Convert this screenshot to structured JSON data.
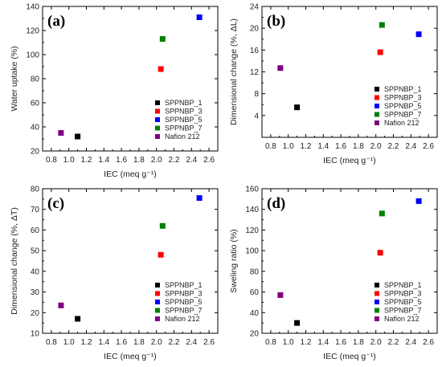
{
  "chart_data": [
    {
      "type": "scatter",
      "panel_label": "(a)",
      "xlabel": "IEC (meq g⁻¹)",
      "ylabel": "Water uptake (%)",
      "xlim": [
        0.7,
        2.7
      ],
      "ylim": [
        20,
        140
      ],
      "xticks": [
        0.8,
        1.0,
        1.2,
        1.4,
        1.6,
        1.8,
        2.0,
        2.2,
        2.4,
        2.6
      ],
      "yticks": [
        20,
        40,
        60,
        80,
        100,
        120,
        140
      ],
      "legend_position": "bottom-right",
      "series": [
        {
          "name": "SPPNBP_1",
          "color": "#000000",
          "points": [
            {
              "x": 1.1,
              "y": 32
            }
          ]
        },
        {
          "name": "SPPNBP_3",
          "color": "#ff0000",
          "points": [
            {
              "x": 2.05,
              "y": 88
            }
          ]
        },
        {
          "name": "SPPNBP_5",
          "color": "#0000ff",
          "points": [
            {
              "x": 2.49,
              "y": 131
            }
          ]
        },
        {
          "name": "SPPNBP_7",
          "color": "#008000",
          "points": [
            {
              "x": 2.07,
              "y": 113
            }
          ]
        },
        {
          "name": "Nafion 212",
          "color": "#800080",
          "points": [
            {
              "x": 0.91,
              "y": 35
            }
          ]
        }
      ]
    },
    {
      "type": "scatter",
      "panel_label": "(b)",
      "xlabel": "IEC (meq g⁻¹)",
      "ylabel": "Dimensional change (%, ΔL)",
      "xlim": [
        0.7,
        2.7
      ],
      "ylim": [
        0,
        24
      ],
      "xticks": [
        0.8,
        1.0,
        1.2,
        1.4,
        1.6,
        1.8,
        2.0,
        2.2,
        2.4,
        2.6
      ],
      "yticks": [
        4,
        8,
        12,
        16,
        20,
        24
      ],
      "legend_position": "bottom-right",
      "series": [
        {
          "name": "SPPNBP_1",
          "color": "#000000",
          "points": [
            {
              "x": 1.1,
              "y": 5.5
            }
          ]
        },
        {
          "name": "SPPNBP_3",
          "color": "#ff0000",
          "points": [
            {
              "x": 2.05,
              "y": 15.6
            }
          ]
        },
        {
          "name": "SPPNBP_5",
          "color": "#0000ff",
          "points": [
            {
              "x": 2.49,
              "y": 18.9
            }
          ]
        },
        {
          "name": "SPPNBP_7",
          "color": "#008000",
          "points": [
            {
              "x": 2.07,
              "y": 20.6
            }
          ]
        },
        {
          "name": "Nafion 212",
          "color": "#800080",
          "points": [
            {
              "x": 0.91,
              "y": 12.7
            }
          ]
        }
      ]
    },
    {
      "type": "scatter",
      "panel_label": "(c)",
      "xlabel": "IEC (meq g⁻¹)",
      "ylabel": "Dimensional change (%, ΔT)",
      "xlim": [
        0.7,
        2.7
      ],
      "ylim": [
        10,
        80
      ],
      "xticks": [
        0.8,
        1.0,
        1.2,
        1.4,
        1.6,
        1.8,
        2.0,
        2.2,
        2.4,
        2.6
      ],
      "yticks": [
        10,
        20,
        30,
        40,
        50,
        60,
        70,
        80
      ],
      "legend_position": "bottom-right",
      "series": [
        {
          "name": "SPPNBP_1",
          "color": "#000000",
          "points": [
            {
              "x": 1.1,
              "y": 17
            }
          ]
        },
        {
          "name": "SPPNBP_3",
          "color": "#ff0000",
          "points": [
            {
              "x": 2.05,
              "y": 48
            }
          ]
        },
        {
          "name": "SPPNBP_5",
          "color": "#0000ff",
          "points": [
            {
              "x": 2.49,
              "y": 75.5
            }
          ]
        },
        {
          "name": "SPPNBP_7",
          "color": "#008000",
          "points": [
            {
              "x": 2.07,
              "y": 62
            }
          ]
        },
        {
          "name": "Nafion 212",
          "color": "#800080",
          "points": [
            {
              "x": 0.91,
              "y": 23.5
            }
          ]
        }
      ]
    },
    {
      "type": "scatter",
      "panel_label": "(d)",
      "xlabel": "IEC (meq g⁻¹)",
      "ylabel": "Sweling ratio (%)",
      "xlim": [
        0.7,
        2.7
      ],
      "ylim": [
        20,
        160
      ],
      "xticks": [
        0.8,
        1.0,
        1.2,
        1.4,
        1.6,
        1.8,
        2.0,
        2.2,
        2.4,
        2.6
      ],
      "yticks": [
        20,
        40,
        60,
        80,
        100,
        120,
        140,
        160
      ],
      "legend_position": "bottom-right",
      "series": [
        {
          "name": "SPPNBP_1",
          "color": "#000000",
          "points": [
            {
              "x": 1.1,
              "y": 30
            }
          ]
        },
        {
          "name": "SPPNBP_3",
          "color": "#ff0000",
          "points": [
            {
              "x": 2.05,
              "y": 98
            }
          ]
        },
        {
          "name": "SPPNBP_5",
          "color": "#0000ff",
          "points": [
            {
              "x": 2.49,
              "y": 148
            }
          ]
        },
        {
          "name": "SPPNBP_7",
          "color": "#008000",
          "points": [
            {
              "x": 2.07,
              "y": 136
            }
          ]
        },
        {
          "name": "Nafion 212",
          "color": "#800080",
          "points": [
            {
              "x": 0.91,
              "y": 57
            }
          ]
        }
      ]
    }
  ]
}
